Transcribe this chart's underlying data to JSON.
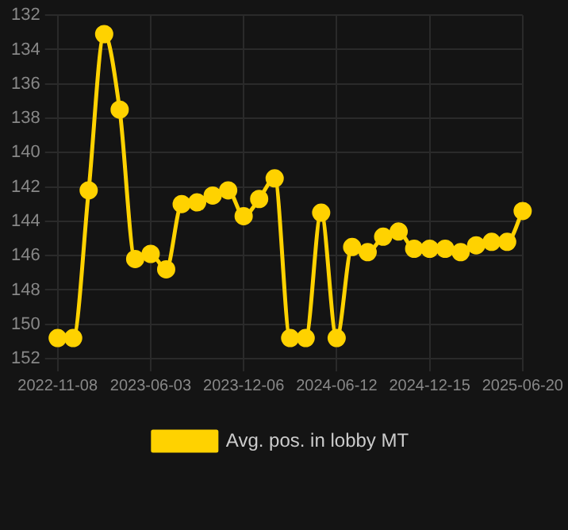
{
  "chart_data": {
    "type": "line",
    "categories": [
      "2022-11-08",
      null,
      null,
      null,
      null,
      null,
      "2023-06-03",
      null,
      null,
      null,
      null,
      null,
      "2023-12-06",
      null,
      null,
      null,
      null,
      null,
      "2024-06-12",
      null,
      null,
      null,
      null,
      null,
      "2024-12-15",
      null,
      null,
      null,
      null,
      null,
      "2025-06-20"
    ],
    "series": [
      {
        "name": "Avg. pos. in lobby MT",
        "color": "#ffd200",
        "values": [
          150.8,
          150.8,
          142.2,
          133.1,
          137.5,
          146.2,
          145.9,
          146.8,
          143.0,
          142.9,
          142.5,
          142.2,
          143.7,
          142.7,
          141.5,
          150.8,
          150.8,
          143.5,
          150.8,
          145.5,
          145.8,
          144.9,
          144.6,
          145.6,
          145.6,
          145.6,
          145.8,
          145.4,
          145.2,
          145.2,
          143.4
        ]
      }
    ],
    "ylim": [
      152,
      132
    ],
    "yticks": [
      132,
      134,
      136,
      138,
      140,
      142,
      144,
      146,
      148,
      150,
      152
    ],
    "grid": true,
    "legend": "bottom",
    "marker": "circle",
    "line_style": "solid"
  }
}
